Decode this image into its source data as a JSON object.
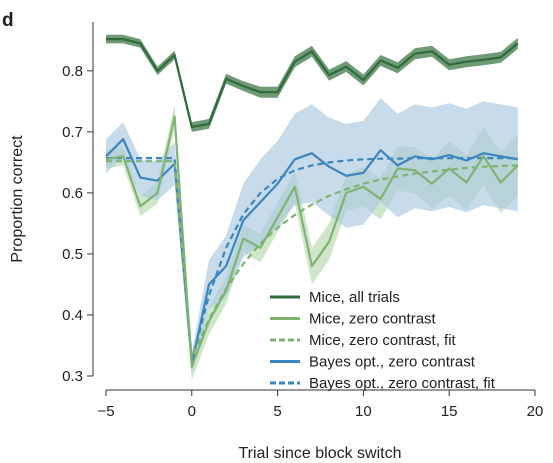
{
  "panel_label": "d",
  "colors": {
    "mice_all": "#2f6b3c",
    "mice_zero": "#7fb372",
    "mice_zero_band": "#b7d9ad",
    "bayes": "#3a86bf",
    "bayes_band": "#a9c7e0",
    "axis": "#333333"
  },
  "chart_data": {
    "type": "line",
    "title": "",
    "xlabel": "Trial since block switch",
    "ylabel": "Proportion correct",
    "xlim": [
      -5.5,
      20
    ],
    "ylim": [
      0.3,
      0.88
    ],
    "xticks": [
      -5,
      0,
      5,
      10,
      15,
      20
    ],
    "xtick_labels": [
      "−5",
      "0",
      "5",
      "10",
      "15",
      "20"
    ],
    "yticks": [
      0.3,
      0.4,
      0.5,
      0.6,
      0.7,
      0.8
    ],
    "ytick_labels": [
      "0.3",
      "0.4",
      "0.5",
      "0.6",
      "0.7",
      "0.8"
    ],
    "grid": false,
    "legend_position": "bottom-right",
    "x": [
      -5,
      -4,
      -3,
      -2,
      -1,
      0,
      1,
      2,
      3,
      4,
      5,
      6,
      7,
      8,
      9,
      10,
      11,
      12,
      13,
      14,
      15,
      16,
      17,
      18,
      19
    ],
    "series": [
      {
        "name": "Mice, all trials",
        "style": "solid",
        "color": "#2f6b3c",
        "band_color": "#5e8f66",
        "values": [
          0.852,
          0.852,
          0.845,
          0.8,
          0.826,
          0.708,
          0.713,
          0.787,
          0.775,
          0.765,
          0.765,
          0.815,
          0.832,
          0.793,
          0.807,
          0.785,
          0.817,
          0.805,
          0.828,
          0.832,
          0.81,
          0.815,
          0.818,
          0.822,
          0.845
        ],
        "band": [
          0.007,
          0.007,
          0.007,
          0.007,
          0.007,
          0.008,
          0.008,
          0.008,
          0.008,
          0.009,
          0.009,
          0.009,
          0.009,
          0.009,
          0.009,
          0.009,
          0.009,
          0.009,
          0.009,
          0.009,
          0.009,
          0.009,
          0.009,
          0.009,
          0.009
        ]
      },
      {
        "name": "Mice, zero contrast",
        "style": "solid",
        "color": "#7fb372",
        "band_color": "#b7d9ad",
        "values": [
          0.655,
          0.66,
          0.578,
          0.6,
          0.725,
          0.315,
          0.39,
          0.44,
          0.525,
          0.51,
          0.56,
          0.61,
          0.48,
          0.52,
          0.6,
          0.61,
          0.59,
          0.64,
          0.637,
          0.615,
          0.64,
          0.617,
          0.66,
          0.617,
          0.645
        ],
        "band": [
          0.015,
          0.015,
          0.016,
          0.018,
          0.02,
          0.022,
          0.022,
          0.022,
          0.022,
          0.024,
          0.024,
          0.026,
          0.03,
          0.03,
          0.03,
          0.032,
          0.034,
          0.036,
          0.038,
          0.04,
          0.045,
          0.045,
          0.048,
          0.05,
          0.05
        ]
      },
      {
        "name": "Mice, zero contrast, fit",
        "style": "dashed",
        "color": "#7fb372",
        "values": [
          0.652,
          0.652,
          0.652,
          0.652,
          0.652,
          0.33,
          0.393,
          0.443,
          0.484,
          0.517,
          0.543,
          0.564,
          0.581,
          0.595,
          0.606,
          0.615,
          0.622,
          0.627,
          0.632,
          0.635,
          0.638,
          0.641,
          0.643,
          0.644,
          0.645
        ]
      },
      {
        "name": "Bayes opt., zero contrast",
        "style": "solid",
        "color": "#3a86bf",
        "band_color": "#a9c7e0",
        "values": [
          0.66,
          0.688,
          0.625,
          0.62,
          0.648,
          0.32,
          0.45,
          0.48,
          0.555,
          0.585,
          0.615,
          0.655,
          0.665,
          0.643,
          0.628,
          0.633,
          0.67,
          0.645,
          0.66,
          0.655,
          0.662,
          0.653,
          0.665,
          0.66,
          0.655
        ],
        "band": [
          0.028,
          0.028,
          0.03,
          0.032,
          0.035,
          0.018,
          0.04,
          0.05,
          0.06,
          0.07,
          0.07,
          0.075,
          0.08,
          0.08,
          0.085,
          0.085,
          0.085,
          0.085,
          0.085,
          0.085,
          0.085,
          0.085,
          0.085,
          0.085,
          0.085
        ]
      },
      {
        "name": "Bayes opt., zero contrast, fit",
        "style": "dashed",
        "color": "#3a86bf",
        "values": [
          0.657,
          0.657,
          0.657,
          0.657,
          0.657,
          0.325,
          0.432,
          0.51,
          0.565,
          0.6,
          0.623,
          0.637,
          0.645,
          0.65,
          0.653,
          0.655,
          0.656,
          0.656,
          0.657,
          0.657,
          0.657,
          0.657,
          0.657,
          0.657,
          0.657
        ]
      }
    ]
  }
}
